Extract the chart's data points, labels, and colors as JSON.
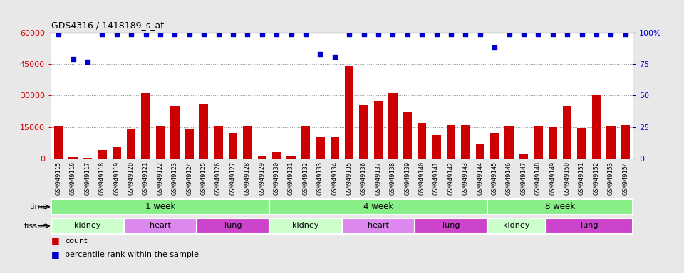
{
  "title": "GDS4316 / 1418189_s_at",
  "samples": [
    "GSM949115",
    "GSM949116",
    "GSM949117",
    "GSM949118",
    "GSM949119",
    "GSM949120",
    "GSM949121",
    "GSM949122",
    "GSM949123",
    "GSM949124",
    "GSM949125",
    "GSM949126",
    "GSM949127",
    "GSM949128",
    "GSM949129",
    "GSM949130",
    "GSM949131",
    "GSM949132",
    "GSM949133",
    "GSM949134",
    "GSM949135",
    "GSM949136",
    "GSM949137",
    "GSM949138",
    "GSM949139",
    "GSM949140",
    "GSM949141",
    "GSM949142",
    "GSM949143",
    "GSM949144",
    "GSM949145",
    "GSM949146",
    "GSM949147",
    "GSM949148",
    "GSM949149",
    "GSM949150",
    "GSM949151",
    "GSM949152",
    "GSM949153",
    "GSM949154"
  ],
  "counts": [
    15500,
    500,
    100,
    4000,
    5500,
    14000,
    31000,
    15500,
    25000,
    14000,
    26000,
    15500,
    12000,
    15500,
    1000,
    3000,
    800,
    15500,
    10000,
    10500,
    44000,
    25500,
    27500,
    31000,
    22000,
    17000,
    11000,
    16000,
    16000,
    7000,
    12000,
    15500,
    2000,
    15500,
    15000,
    25000,
    14500,
    30000,
    15500,
    16000
  ],
  "percentile": [
    99,
    79,
    77,
    99,
    99,
    99,
    99,
    99,
    99,
    99,
    99,
    99,
    99,
    99,
    99,
    99,
    99,
    99,
    83,
    81,
    99,
    99,
    99,
    99,
    99,
    99,
    99,
    99,
    99,
    99,
    88,
    99,
    99,
    99,
    99,
    99,
    99,
    99,
    99,
    99
  ],
  "bar_color": "#cc0000",
  "scatter_color": "#0000cc",
  "ylim_left": [
    0,
    60000
  ],
  "ylim_right": [
    0,
    100
  ],
  "yticks_left": [
    0,
    15000,
    30000,
    45000,
    60000
  ],
  "yticks_right": [
    0,
    25,
    50,
    75,
    100
  ],
  "time_groups": [
    {
      "label": "1 week",
      "start": 0,
      "end": 15
    },
    {
      "label": "4 week",
      "start": 15,
      "end": 30
    },
    {
      "label": "8 week",
      "start": 30,
      "end": 40
    }
  ],
  "tissue_groups": [
    {
      "label": "kidney",
      "start": 0,
      "end": 5
    },
    {
      "label": "heart",
      "start": 5,
      "end": 10
    },
    {
      "label": "lung",
      "start": 10,
      "end": 15
    },
    {
      "label": "kidney",
      "start": 15,
      "end": 20
    },
    {
      "label": "heart",
      "start": 20,
      "end": 25
    },
    {
      "label": "lung",
      "start": 25,
      "end": 30
    },
    {
      "label": "kidney",
      "start": 30,
      "end": 34
    },
    {
      "label": "lung",
      "start": 34,
      "end": 40
    }
  ],
  "bg_color": "#e8e8e8",
  "plot_bg_color": "#ffffff",
  "time_color": "#88ee88",
  "kidney_color": "#ccffcc",
  "heart_color": "#dd88ee",
  "lung_color": "#cc44cc",
  "legend_count_color": "#cc0000",
  "legend_pct_color": "#0000cc",
  "grid_color": "#888888"
}
